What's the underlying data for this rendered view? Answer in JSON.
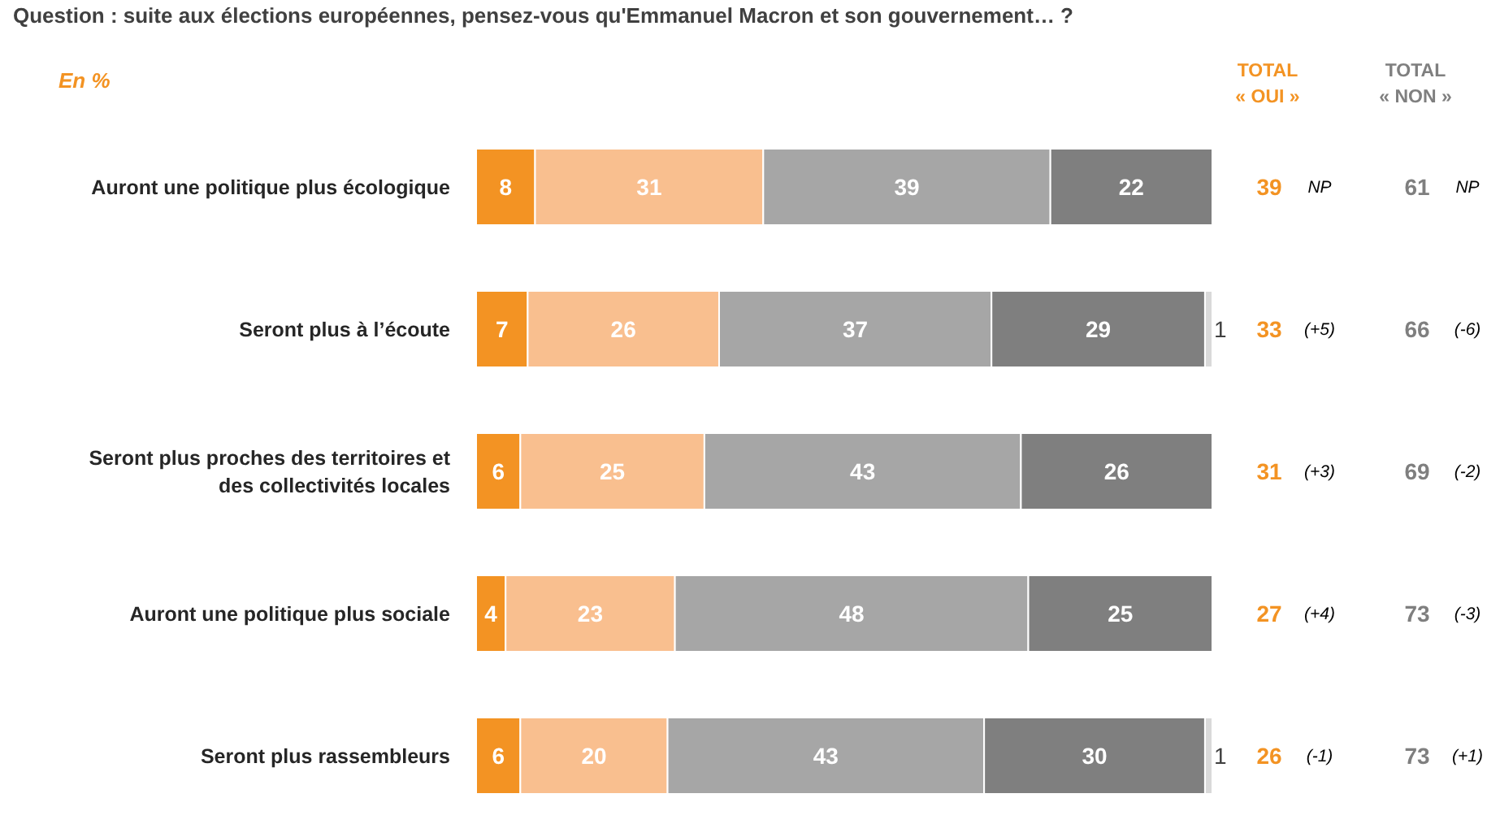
{
  "chart_data": {
    "type": "bar",
    "orientation": "horizontal",
    "stacked": true,
    "title": "Question : suite aux élections européennes, pensez-vous qu'Emmanuel Macron et son gouvernement… ?",
    "subtitle": "En %",
    "categories": [
      "Auront une politique plus écologique",
      "Seront plus à l’écoute",
      "Seront plus proches des territoires et des collectivités locales",
      "Auront une politique plus sociale",
      "Seront plus rassembleurs"
    ],
    "series": [
      {
        "color": "#f39323",
        "values": [
          8,
          7,
          6,
          4,
          6
        ]
      },
      {
        "color": "#f9bf8f",
        "values": [
          31,
          26,
          25,
          23,
          20
        ]
      },
      {
        "color": "#a6a6a6",
        "values": [
          39,
          37,
          43,
          48,
          43
        ]
      },
      {
        "color": "#7f7f7f",
        "values": [
          22,
          29,
          26,
          25,
          30
        ]
      },
      {
        "color": "#d9d9d9",
        "values": [
          null,
          1,
          null,
          null,
          1
        ]
      }
    ],
    "xlim": [
      0,
      100
    ],
    "tick_labels": "y",
    "data_labels": true,
    "annotations": [
      "TOTAL « OUI »",
      "TOTAL « NON »",
      "39",
      "NP",
      "61",
      "NP",
      "33",
      "(+5)",
      "66",
      "(-6)",
      "31",
      "(+3)",
      "69",
      "(-2)",
      "27",
      "(+4)",
      "73",
      "(-3)",
      "26",
      "(-1)",
      "73",
      "(+1)"
    ]
  }
}
